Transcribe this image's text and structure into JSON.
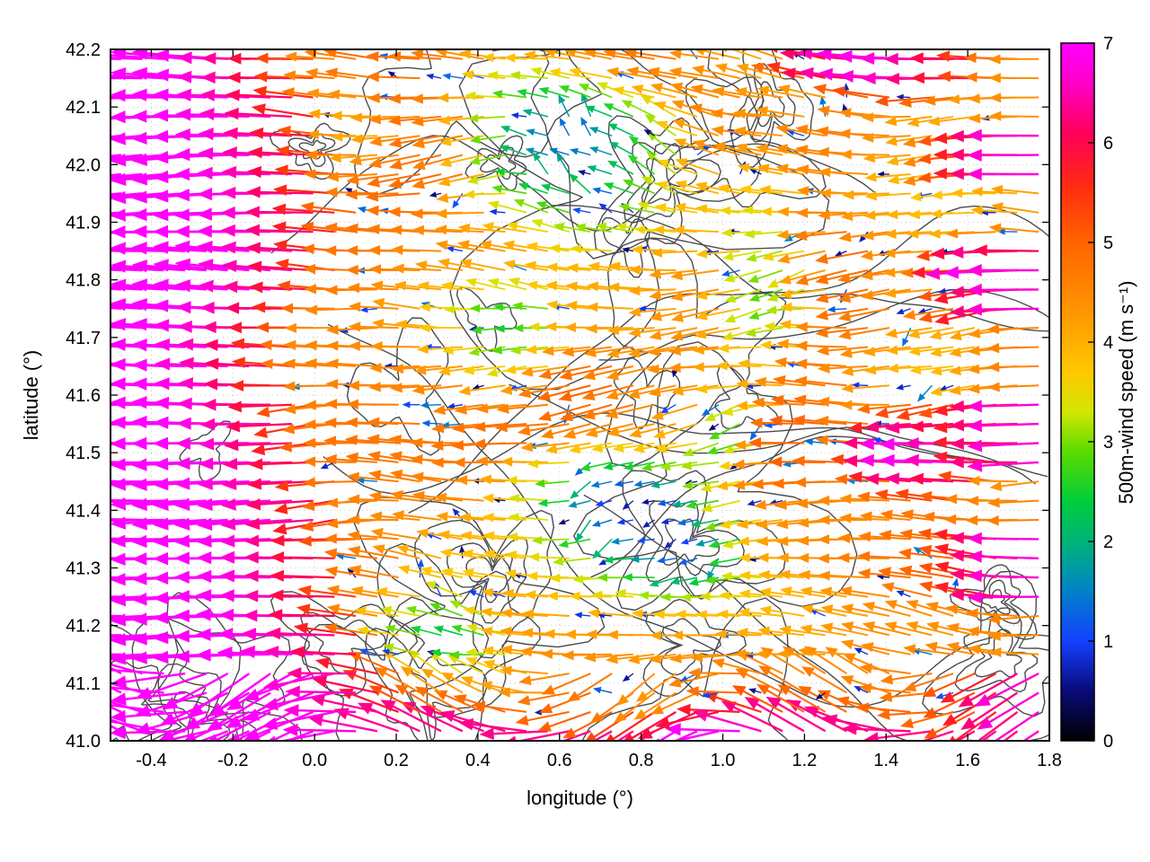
{
  "figure": {
    "background": "#ffffff",
    "frame_color": "#000000"
  },
  "chart_data": {
    "type": "quiver",
    "title": "",
    "xlabel": "longitude (°)",
    "ylabel": "latitude (°)",
    "xlim": [
      -0.5,
      1.8
    ],
    "ylim": [
      41.0,
      42.2
    ],
    "xticks": [
      "-0.4",
      "-0.2",
      "0.0",
      "0.2",
      "0.4",
      "0.6",
      "0.8",
      "1.0",
      "1.2",
      "1.4",
      "1.6",
      "1.8"
    ],
    "yticks": [
      "41.0",
      "41.1",
      "41.2",
      "41.3",
      "41.4",
      "41.5",
      "41.6",
      "41.7",
      "41.8",
      "41.9",
      "42.0",
      "42.1",
      "42.2"
    ],
    "grid": true,
    "grid_color": "#c8c8c8",
    "colorbar": {
      "label": "500m-wind speed (m s⁻¹)",
      "min": 0,
      "max": 7,
      "ticks": [
        "0",
        "1",
        "2",
        "3",
        "4",
        "5",
        "6",
        "7"
      ],
      "stops": [
        [
          0.0,
          "#000000"
        ],
        [
          0.5,
          "#0a0a78"
        ],
        [
          1.0,
          "#1440ff"
        ],
        [
          1.5,
          "#0082c8"
        ],
        [
          2.0,
          "#00b478"
        ],
        [
          2.4,
          "#00cd3c"
        ],
        [
          2.9,
          "#5adc00"
        ],
        [
          3.3,
          "#d2e600"
        ],
        [
          3.7,
          "#ffc800"
        ],
        [
          4.3,
          "#ff9600"
        ],
        [
          5.0,
          "#ff6400"
        ],
        [
          5.6,
          "#ff2814"
        ],
        [
          6.1,
          "#ff005a"
        ],
        [
          6.6,
          "#ff00c8"
        ],
        [
          7.0,
          "#ff00ff"
        ]
      ]
    },
    "vector_field": {
      "description": "500 m wind vectors on a regular lon-lat grid; arrows point predominantly westward (heads to the left); arrow length and colour scale with wind speed 0-7 m/s; strong magenta jet (~7 m/s) over the western third and along the southern edge, orange/red (4-5.5 m/s) over the centre, slow green/blue pockets (1-3 m/s) near (0.8,41.4), (0.6,42.05) and the centre-south, magenta streaks again along the eastern edge",
      "seed": 7,
      "grid": {
        "nx": 44,
        "ny": 36
      },
      "direction_deg_mean": 180,
      "speed_model": {
        "background_mean": 4.25,
        "background_noise_amp": 1.35,
        "left_jet": {
          "base_lon": 0.18,
          "sin_amp": 0.15,
          "sin_freq": 3.1,
          "sin_phase": 0.9,
          "noise_amp": 0.22,
          "width": 0.1,
          "speed": 7.25
        },
        "bottom_jet": {
          "lat": 40.97,
          "sigma": 0.13,
          "speed": 7.2
        },
        "right_streaks": {
          "lon": 1.9,
          "sigma": 0.5,
          "speed": 7.1,
          "row_freq": 26
        },
        "fast_blobs": [
          {
            "lon": 1.55,
            "lat": 41.5,
            "sx": 0.28,
            "sy": 0.16,
            "amp": 7.0
          },
          {
            "lon": 1.72,
            "lat": 41.82,
            "sx": 0.25,
            "sy": 0.1,
            "amp": 6.9
          },
          {
            "lon": 1.45,
            "lat": 42.17,
            "sx": 0.45,
            "sy": 0.1,
            "amp": 7.0
          },
          {
            "lon": 0.95,
            "lat": 41.02,
            "sx": 0.5,
            "sy": 0.07,
            "amp": 7.2
          }
        ],
        "slow_blobs": [
          {
            "lon": 0.78,
            "lat": 41.43,
            "sx": 0.2,
            "sy": 0.09,
            "amp": 3.4
          },
          {
            "lon": 0.62,
            "lat": 42.06,
            "sx": 0.22,
            "sy": 0.11,
            "amp": 2.6
          },
          {
            "lon": 0.93,
            "lat": 41.33,
            "sx": 0.16,
            "sy": 0.08,
            "amp": 2.6
          },
          {
            "lon": 0.35,
            "lat": 41.17,
            "sx": 0.16,
            "sy": 0.07,
            "amp": 2.0
          },
          {
            "lon": 1.15,
            "lat": 41.8,
            "sx": 0.12,
            "sy": 0.18,
            "amp": 2.2
          },
          {
            "lon": 0.52,
            "lat": 41.72,
            "sx": 0.12,
            "sy": 0.08,
            "amp": 1.6
          },
          {
            "lon": 0.73,
            "lat": 41.95,
            "sx": 0.3,
            "sy": 0.1,
            "amp": 2.0
          },
          {
            "lon": 1.05,
            "lat": 41.55,
            "sx": 0.1,
            "sy": 0.1,
            "amp": 1.8
          }
        ],
        "sparse_slow_fraction": 0.12
      }
    },
    "contours": {
      "description": "dark grey terrain/height contour lines overlaid on the map",
      "color": "#3c3c3c",
      "stroke_width": 1.4,
      "closed_loops": 30,
      "open_lines": 9,
      "seed": 12
    }
  }
}
